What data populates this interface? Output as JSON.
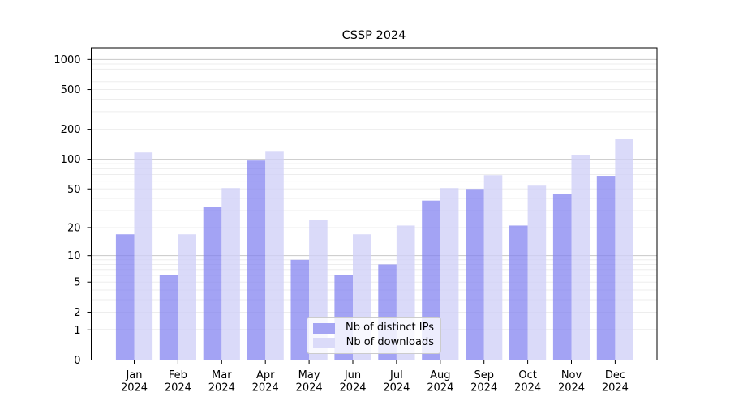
{
  "chart_data": {
    "type": "bar",
    "title": "CSSP 2024",
    "categories": [
      {
        "month": "Jan",
        "year": "2024"
      },
      {
        "month": "Feb",
        "year": "2024"
      },
      {
        "month": "Mar",
        "year": "2024"
      },
      {
        "month": "Apr",
        "year": "2024"
      },
      {
        "month": "May",
        "year": "2024"
      },
      {
        "month": "Jun",
        "year": "2024"
      },
      {
        "month": "Jul",
        "year": "2024"
      },
      {
        "month": "Aug",
        "year": "2024"
      },
      {
        "month": "Sep",
        "year": "2024"
      },
      {
        "month": "Oct",
        "year": "2024"
      },
      {
        "month": "Nov",
        "year": "2024"
      },
      {
        "month": "Dec",
        "year": "2024"
      }
    ],
    "series": [
      {
        "name": "Nb of distinct IPs",
        "color": "#7f7ff0",
        "fill_opacity": 0.72,
        "legend_color": "#a4a4f3",
        "values": [
          17,
          6,
          33,
          97,
          9,
          6,
          8,
          38,
          50,
          21,
          44,
          68
        ]
      },
      {
        "name": "Nb of downloads",
        "color": "#cfcff7",
        "fill_opacity": 0.78,
        "legend_color": "#dbdbf9",
        "values": [
          117,
          17,
          51,
          119,
          24,
          17,
          21,
          51,
          69,
          54,
          111,
          160
        ]
      }
    ],
    "yscale": "log1p",
    "yticks": [
      0,
      1,
      2,
      5,
      10,
      20,
      50,
      100,
      200,
      500,
      1000
    ],
    "ylim": [
      0,
      1310
    ],
    "xlabel": "",
    "ylabel": "",
    "grid": {
      "major_lines": [
        1,
        10,
        100,
        1000
      ],
      "minor_steps": [
        2,
        3,
        4,
        5,
        6,
        7,
        8,
        9
      ],
      "major_color": "#c8c8c8",
      "minor_color": "#ededed"
    },
    "legend_position": "lower center",
    "axis_color": "#000000",
    "text_color": "#000000",
    "background_color": "#ffffff"
  }
}
